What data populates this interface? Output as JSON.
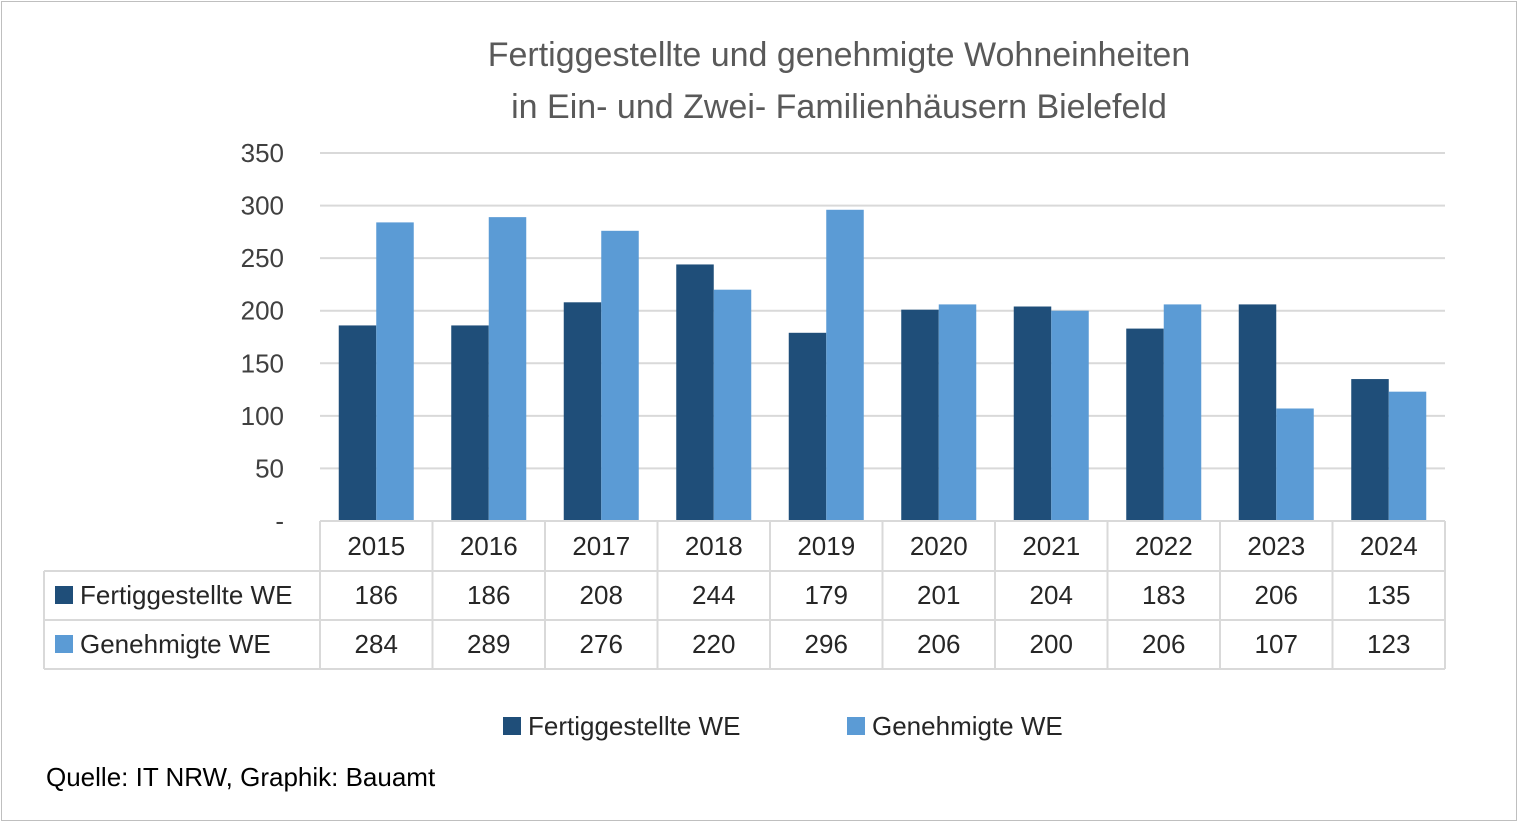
{
  "chart_data": {
    "type": "bar",
    "title_lines": [
      "Fertiggestellte und genehmigte Wohneinheiten",
      "in Ein- und Zwei- Familienhäusern Bielefeld"
    ],
    "categories": [
      "2015",
      "2016",
      "2017",
      "2018",
      "2019",
      "2020",
      "2021",
      "2022",
      "2023",
      "2024"
    ],
    "series": [
      {
        "name": "Fertiggestellte WE",
        "color": "#1f4e79",
        "values": [
          186,
          186,
          208,
          244,
          179,
          201,
          204,
          183,
          206,
          135
        ]
      },
      {
        "name": "Genehmigte WE",
        "color": "#5b9bd5",
        "values": [
          284,
          289,
          276,
          220,
          296,
          206,
          200,
          206,
          107,
          123
        ]
      }
    ],
    "ylim": [
      0,
      350
    ],
    "yticks": [
      0,
      50,
      100,
      150,
      200,
      250,
      300,
      350
    ],
    "ytick_labels": [
      "-",
      "50",
      "100",
      "150",
      "200",
      "250",
      "300",
      "350"
    ],
    "grid": true,
    "data_table": true,
    "legend_position": "bottom"
  },
  "source_note": "Quelle: IT NRW, Graphik: Bauamt"
}
